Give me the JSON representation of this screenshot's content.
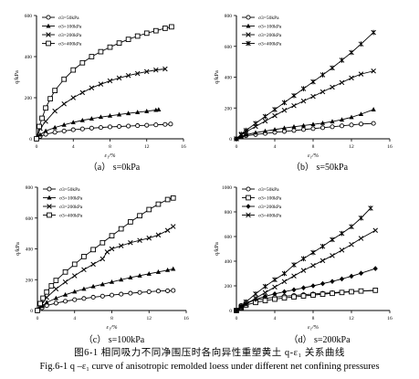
{
  "figure": {
    "caption_cn": "图6-1 相同吸力不同净围压时各向异性重塑黄土 q-ε₁ 关系曲线",
    "caption_en": "Fig.6-1 q –ε₁ curve of anisotropic remolded loess under different net confining pressures"
  },
  "chart_data": [
    {
      "type": "line",
      "panel_label": "（a） s=0kPa",
      "ylabel": "q/kPa",
      "xlabel": "ε₁/%",
      "xlim": [
        0,
        16
      ],
      "ylim": [
        0,
        600
      ],
      "xticks": [
        0,
        4,
        8,
        12,
        16
      ],
      "yticks": [
        0,
        200,
        400,
        600
      ],
      "xtick_labels": [
        "0",
        "4",
        "8",
        "12",
        "16"
      ],
      "ytick_labels": [
        "0",
        "200",
        "400",
        "600"
      ],
      "legend_position": "top-left",
      "series": [
        {
          "name": "σ3=50kPa",
          "marker": "circle",
          "x": [
            0,
            0.4,
            1,
            2,
            3,
            4,
            5,
            6,
            7,
            8,
            9,
            10,
            11,
            12,
            13,
            14,
            14.6
          ],
          "y": [
            0,
            12,
            22,
            32,
            38,
            44,
            48,
            52,
            55,
            58,
            60,
            62,
            64,
            66,
            68,
            70,
            72
          ]
        },
        {
          "name": "σ3=100kPa",
          "marker": "triangle",
          "x": [
            0,
            0.4,
            1,
            2,
            3,
            4,
            5,
            6,
            7,
            8,
            9,
            10,
            11,
            12,
            13,
            13.3
          ],
          "y": [
            0,
            20,
            38,
            55,
            68,
            80,
            90,
            98,
            106,
            112,
            118,
            124,
            129,
            134,
            140,
            142
          ]
        },
        {
          "name": "σ3=200kPa",
          "marker": "x",
          "x": [
            0,
            0.4,
            1,
            2,
            3,
            4,
            5,
            6,
            7,
            8,
            9,
            10,
            11,
            12,
            13,
            14
          ],
          "y": [
            0,
            50,
            85,
            135,
            170,
            200,
            225,
            248,
            266,
            282,
            296,
            308,
            318,
            327,
            335,
            340
          ]
        },
        {
          "name": "σ3=400kPa",
          "marker": "square",
          "x": [
            0,
            0.3,
            0.6,
            1,
            1.5,
            2,
            3,
            4,
            5,
            6,
            7,
            8,
            9,
            10,
            11,
            12,
            13,
            14,
            14.7
          ],
          "y": [
            0,
            60,
            100,
            150,
            195,
            235,
            290,
            335,
            370,
            400,
            424,
            446,
            466,
            484,
            500,
            514,
            526,
            538,
            545
          ]
        }
      ]
    },
    {
      "type": "line",
      "panel_label": "（b） s=50kPa",
      "ylabel": "q/kPa",
      "xlabel": "ε₁/%",
      "xlim": [
        0,
        16
      ],
      "ylim": [
        0,
        800
      ],
      "xticks": [
        0,
        4,
        8,
        12,
        16
      ],
      "yticks": [
        0,
        200,
        400,
        600,
        800
      ],
      "xtick_labels": [
        "0",
        "4",
        "8",
        "12",
        "16"
      ],
      "ytick_labels": [
        "0",
        "200",
        "400",
        "600",
        "800"
      ],
      "legend_position": "top-left",
      "series": [
        {
          "name": "σ3=50kPa",
          "marker": "circle",
          "x": [
            0,
            0.5,
            1,
            2,
            3,
            4,
            5,
            6,
            7,
            8,
            9,
            10,
            11,
            12,
            13,
            14.3
          ],
          "y": [
            0,
            12,
            20,
            28,
            35,
            42,
            48,
            54,
            60,
            66,
            72,
            78,
            84,
            90,
            96,
            100
          ]
        },
        {
          "name": "σ3=100kPa",
          "marker": "triangle",
          "x": [
            0,
            0.5,
            1,
            2,
            3,
            4,
            5,
            6,
            7,
            8,
            9,
            10,
            11,
            12,
            13,
            14.3
          ],
          "y": [
            0,
            15,
            26,
            40,
            50,
            60,
            70,
            78,
            86,
            94,
            102,
            112,
            124,
            140,
            160,
            190
          ]
        },
        {
          "name": "σ3=200kPa",
          "marker": "x",
          "x": [
            0,
            0.5,
            1,
            2,
            3,
            4,
            5,
            6,
            7,
            8,
            9,
            10,
            11,
            12,
            13,
            14.3
          ],
          "y": [
            0,
            25,
            45,
            80,
            115,
            150,
            185,
            215,
            245,
            275,
            305,
            335,
            365,
            395,
            420,
            440
          ]
        },
        {
          "name": "σ3=400kPa",
          "marker": "star",
          "x": [
            0,
            0.5,
            1,
            2,
            3,
            4,
            5,
            6,
            7,
            8,
            9,
            10,
            11,
            12,
            13,
            14.3
          ],
          "y": [
            0,
            30,
            55,
            100,
            145,
            190,
            235,
            280,
            325,
            370,
            415,
            460,
            510,
            560,
            615,
            690
          ]
        }
      ]
    },
    {
      "type": "line",
      "panel_label": "（c） s=100kPa",
      "ylabel": "q/kPa",
      "xlabel": "ε₁/%",
      "xlim": [
        0,
        16
      ],
      "ylim": [
        0,
        800
      ],
      "xticks": [
        0,
        4,
        8,
        12,
        16
      ],
      "yticks": [
        0,
        200,
        400,
        600,
        800
      ],
      "xtick_labels": [
        "0",
        "4",
        "8",
        "12",
        "16"
      ],
      "ytick_labels": [
        "0",
        "200",
        "400",
        "600",
        "800"
      ],
      "legend_position": "top-left",
      "series": [
        {
          "name": "σ3=50kPa",
          "marker": "circle",
          "x": [
            0,
            0.5,
            1,
            2,
            3,
            4,
            5,
            6,
            7,
            8,
            9,
            10,
            11,
            12,
            13,
            14,
            14.6
          ],
          "y": [
            0,
            18,
            32,
            48,
            60,
            70,
            78,
            86,
            93,
            100,
            106,
            112,
            117,
            122,
            126,
            128,
            130
          ]
        },
        {
          "name": "σ3=100kPa",
          "marker": "triangle",
          "x": [
            0,
            0.5,
            1,
            2,
            3,
            4,
            5,
            6,
            7,
            8,
            9,
            10,
            11,
            12,
            13,
            14,
            14.6
          ],
          "y": [
            0,
            28,
            52,
            80,
            102,
            122,
            140,
            156,
            170,
            185,
            200,
            214,
            226,
            238,
            250,
            262,
            270
          ]
        },
        {
          "name": "σ3=200kPa",
          "marker": "x",
          "x": [
            0,
            0.5,
            1,
            2,
            3,
            4,
            5,
            6,
            7,
            7.5,
            8,
            9,
            10,
            11,
            12,
            13,
            14,
            14.6
          ],
          "y": [
            0,
            45,
            85,
            140,
            185,
            225,
            265,
            300,
            335,
            380,
            400,
            420,
            440,
            455,
            470,
            490,
            520,
            545
          ]
        },
        {
          "name": "σ3=400kPa",
          "marker": "square",
          "x": [
            0,
            0.3,
            0.6,
            1,
            1.5,
            2,
            3,
            4,
            5,
            6,
            7,
            8,
            9,
            10,
            11,
            12,
            13,
            14,
            14.6
          ],
          "y": [
            0,
            45,
            80,
            120,
            160,
            195,
            250,
            300,
            350,
            395,
            440,
            485,
            530,
            575,
            615,
            655,
            690,
            720,
            730
          ]
        }
      ]
    },
    {
      "type": "line",
      "panel_label": "（d） s=200kPa",
      "ylabel": "q/kPa",
      "xlabel": "ε₁/%",
      "xlim": [
        0,
        16
      ],
      "ylim": [
        0,
        1000
      ],
      "xticks": [
        0,
        4,
        8,
        12,
        16
      ],
      "yticks": [
        0,
        200,
        400,
        600,
        800,
        1000
      ],
      "xtick_labels": [
        "0",
        "4",
        "8",
        "12",
        "16"
      ],
      "ytick_labels": [
        "0",
        "200",
        "400",
        "600",
        "800",
        "1000"
      ],
      "legend_position": "top-left",
      "series": [
        {
          "name": "σ3=50kPa",
          "marker": "circle",
          "x": [
            0,
            0.5,
            1,
            2,
            3,
            4,
            5,
            6,
            7,
            8,
            9,
            10,
            11,
            12,
            13,
            14.5
          ],
          "y": [
            0,
            40,
            65,
            85,
            98,
            108,
            116,
            122,
            128,
            134,
            139,
            144,
            149,
            154,
            158,
            162
          ]
        },
        {
          "name": "σ3=100kPa",
          "marker": "square",
          "x": [
            0,
            0.5,
            1,
            2,
            3,
            4,
            5,
            6,
            7,
            8,
            9,
            10,
            11,
            12,
            13,
            14.5
          ],
          "y": [
            0,
            25,
            45,
            65,
            80,
            92,
            102,
            110,
            118,
            125,
            132,
            139,
            146,
            152,
            158,
            164
          ]
        },
        {
          "name": "σ3=200kPa",
          "marker": "diamond",
          "x": [
            0,
            0.5,
            1,
            2,
            3,
            4,
            5,
            6,
            7,
            8,
            9,
            10,
            11,
            12,
            13,
            14.5
          ],
          "y": [
            0,
            30,
            55,
            90,
            115,
            135,
            152,
            168,
            184,
            200,
            218,
            236,
            256,
            278,
            302,
            340
          ]
        },
        {
          "name": "σ3=400kPa",
          "marker": "x",
          "x": [
            0,
            0.5,
            1,
            2,
            3,
            4,
            5,
            6,
            7,
            8,
            9,
            10,
            11,
            12,
            13,
            14.5
          ],
          "y": [
            0,
            25,
            50,
            100,
            145,
            190,
            235,
            280,
            325,
            365,
            405,
            445,
            490,
            535,
            585,
            650
          ]
        },
        {
          "name": "",
          "marker": "star",
          "x": [
            0,
            0.5,
            1,
            2,
            3,
            4,
            5,
            6,
            7,
            8,
            9,
            10,
            11,
            12,
            13,
            14
          ],
          "y": [
            0,
            35,
            70,
            135,
            195,
            250,
            300,
            370,
            420,
            470,
            520,
            575,
            625,
            680,
            750,
            830
          ]
        }
      ]
    }
  ]
}
